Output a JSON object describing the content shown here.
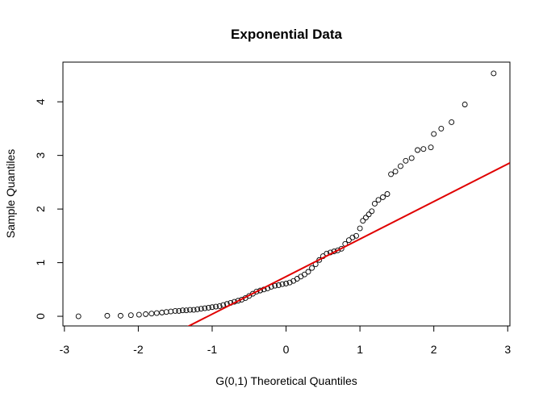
{
  "chart_data": {
    "type": "scatter",
    "title": "Exponential Data",
    "x_label": "G(0,1) Theoretical Quantiles",
    "y_label": "Sample Quantiles",
    "x": [
      -2.81,
      -2.42,
      -2.24,
      -2.1,
      -1.99,
      -1.9,
      -1.82,
      -1.75,
      -1.68,
      -1.62,
      -1.56,
      -1.5,
      -1.45,
      -1.4,
      -1.35,
      -1.3,
      -1.25,
      -1.2,
      -1.15,
      -1.1,
      -1.05,
      -1.0,
      -0.95,
      -0.9,
      -0.85,
      -0.8,
      -0.75,
      -0.7,
      -0.65,
      -0.6,
      -0.55,
      -0.5,
      -0.45,
      -0.4,
      -0.35,
      -0.3,
      -0.25,
      -0.2,
      -0.15,
      -0.1,
      -0.05,
      0,
      0.05,
      0.1,
      0.15,
      0.2,
      0.25,
      0.3,
      0.35,
      0.4,
      0.45,
      0.5,
      0.55,
      0.6,
      0.65,
      0.7,
      0.75,
      0.8,
      0.85,
      0.9,
      0.95,
      1.0,
      1.04,
      1.08,
      1.12,
      1.16,
      1.2,
      1.25,
      1.31,
      1.37,
      1.42,
      1.48,
      1.55,
      1.62,
      1.7,
      1.78,
      1.86,
      1.96,
      2.0,
      2.1,
      2.24,
      2.42,
      2.81
    ],
    "y": [
      0.0,
      0.01,
      0.01,
      0.02,
      0.03,
      0.04,
      0.05,
      0.06,
      0.07,
      0.08,
      0.09,
      0.1,
      0.1,
      0.11,
      0.11,
      0.12,
      0.12,
      0.13,
      0.14,
      0.15,
      0.16,
      0.17,
      0.18,
      0.19,
      0.21,
      0.23,
      0.25,
      0.27,
      0.29,
      0.31,
      0.34,
      0.38,
      0.42,
      0.46,
      0.48,
      0.5,
      0.52,
      0.55,
      0.57,
      0.58,
      0.6,
      0.61,
      0.63,
      0.66,
      0.7,
      0.74,
      0.78,
      0.83,
      0.9,
      0.97,
      1.05,
      1.12,
      1.17,
      1.19,
      1.21,
      1.23,
      1.26,
      1.35,
      1.42,
      1.47,
      1.5,
      1.64,
      1.78,
      1.84,
      1.9,
      1.96,
      2.1,
      2.17,
      2.22,
      2.28,
      2.65,
      2.7,
      2.8,
      2.9,
      2.95,
      3.1,
      3.12,
      3.15,
      3.4,
      3.5,
      3.62,
      3.95,
      4.53
    ],
    "point_color": "#000000",
    "reference_line": {
      "intercept": 0.74,
      "slope": 0.7,
      "color": "#e00000"
    },
    "xlim": [
      -3.02,
      3.03
    ],
    "ylim": [
      -0.18,
      4.74
    ],
    "xticks": [
      -3,
      -2,
      -1,
      0,
      1,
      2,
      3
    ],
    "yticks": [
      0,
      1,
      2,
      3,
      4
    ]
  }
}
